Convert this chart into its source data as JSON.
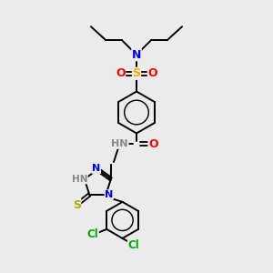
{
  "bg_color": "#ebebeb",
  "bond_color": "#000000",
  "atom_colors": {
    "N": "#0000ff",
    "O": "#ff0000",
    "S_sulfone": "#ffaa00",
    "S_thio": "#aaaa00",
    "Cl": "#00aa00",
    "HN": "#888888",
    "C": "#000000"
  },
  "figsize": [
    3.0,
    3.0
  ],
  "dpi": 100
}
